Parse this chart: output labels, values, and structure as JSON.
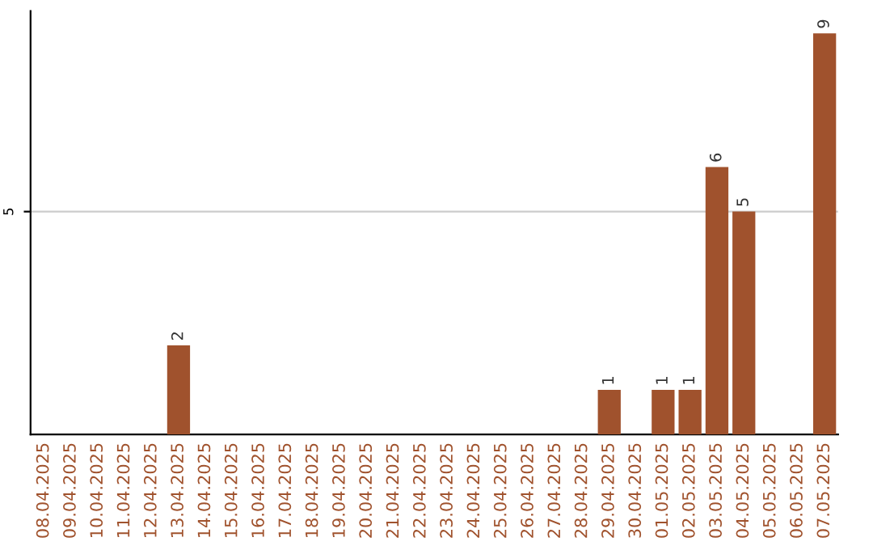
{
  "chart_data": {
    "type": "bar",
    "categories": [
      "08.04.2025",
      "09.04.2025",
      "10.04.2025",
      "11.04.2025",
      "12.04.2025",
      "13.04.2025",
      "14.04.2025",
      "15.04.2025",
      "16.04.2025",
      "17.04.2025",
      "18.04.2025",
      "19.04.2025",
      "20.04.2025",
      "21.04.2025",
      "22.04.2025",
      "23.04.2025",
      "24.04.2025",
      "25.04.2025",
      "26.04.2025",
      "27.04.2025",
      "28.04.2025",
      "29.04.2025",
      "30.04.2025",
      "01.05.2025",
      "02.05.2025",
      "03.05.2025",
      "04.05.2025",
      "05.05.2025",
      "06.05.2025",
      "07.05.2025"
    ],
    "values": [
      0,
      0,
      0,
      0,
      0,
      2,
      0,
      0,
      0,
      0,
      0,
      0,
      0,
      0,
      0,
      0,
      0,
      0,
      0,
      0,
      0,
      1,
      0,
      1,
      1,
      6,
      5,
      0,
      0,
      9
    ],
    "value_labels": [
      null,
      null,
      null,
      null,
      null,
      "2",
      null,
      null,
      null,
      null,
      null,
      null,
      null,
      null,
      null,
      null,
      null,
      null,
      null,
      null,
      null,
      "1",
      null,
      "1",
      "1",
      "6",
      "5",
      null,
      null,
      "9"
    ],
    "color": "#a0522d",
    "ylim": [
      0,
      9.5
    ],
    "yticks": [
      5
    ],
    "grid": "y",
    "legend": false
  }
}
